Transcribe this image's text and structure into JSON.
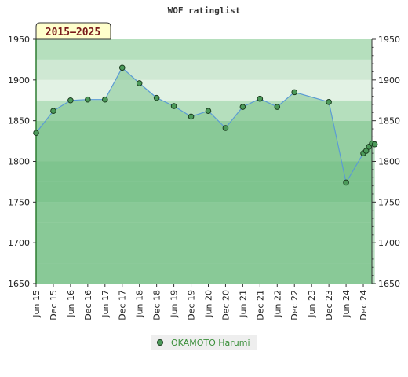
{
  "chart_data": {
    "type": "area",
    "title": "WOF ratinglist",
    "range_badge": "2015–2025",
    "ylim": [
      1650,
      1950
    ],
    "y_ticks": [
      1650,
      1700,
      1750,
      1800,
      1850,
      1900,
      1950
    ],
    "x_ticks": [
      "Jun 15",
      "Dec 15",
      "Jun 16",
      "Dec 16",
      "Jun 17",
      "Dec 17",
      "Jun 18",
      "Dec 18",
      "Jun 19",
      "Dec 19",
      "Jun 20",
      "Dec 20",
      "Jun 21",
      "Dec 21",
      "Jun 22",
      "Dec 22",
      "Jun 23",
      "Dec 23",
      "Jun 24",
      "Dec 24"
    ],
    "x_range": [
      "2015-06",
      "2025-03"
    ],
    "series": [
      {
        "name": "OKAMOTO Harumi",
        "color": "#66aa66",
        "points": [
          {
            "x": "2015-06",
            "y": 1835
          },
          {
            "x": "2015-12",
            "y": 1862
          },
          {
            "x": "2016-06",
            "y": 1875
          },
          {
            "x": "2016-12",
            "y": 1876
          },
          {
            "x": "2017-06",
            "y": 1876
          },
          {
            "x": "2017-12",
            "y": 1915
          },
          {
            "x": "2018-06",
            "y": 1896
          },
          {
            "x": "2018-12",
            "y": 1878
          },
          {
            "x": "2019-06",
            "y": 1868
          },
          {
            "x": "2019-12",
            "y": 1855
          },
          {
            "x": "2020-06",
            "y": 1862
          },
          {
            "x": "2020-12",
            "y": 1841
          },
          {
            "x": "2021-06",
            "y": 1867
          },
          {
            "x": "2021-12",
            "y": 1877
          },
          {
            "x": "2022-06",
            "y": 1867
          },
          {
            "x": "2022-12",
            "y": 1885
          },
          {
            "x": "2023-12",
            "y": 1873
          },
          {
            "x": "2024-06",
            "y": 1774
          },
          {
            "x": "2024-12",
            "y": 1810
          },
          {
            "x": "2025-01",
            "y": 1813
          },
          {
            "x": "2025-02",
            "y": 1818
          },
          {
            "x": "2025-03",
            "y": 1822
          },
          {
            "x": "2025-04",
            "y": 1821
          }
        ]
      }
    ],
    "legend": [
      "OKAMOTO Harumi"
    ],
    "grid": true
  }
}
